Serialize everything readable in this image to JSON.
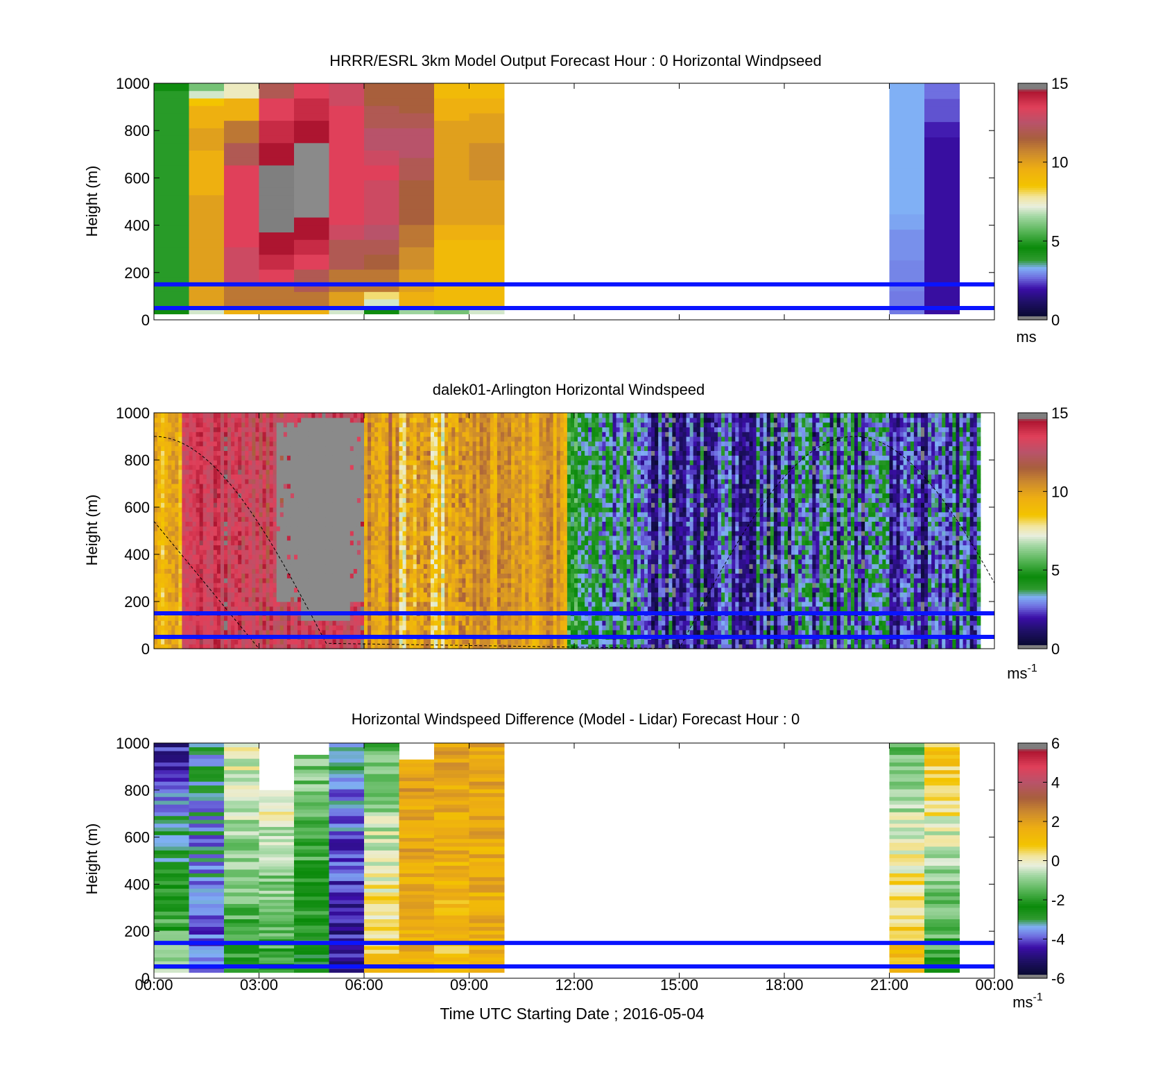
{
  "figure": {
    "xlabel": "Time UTC  Starting Date ; 2016-05-04",
    "x_ticks": [
      "00:00",
      "03:00",
      "06:00",
      "09:00",
      "12:00",
      "15:00",
      "18:00",
      "21:00",
      "00:00"
    ]
  },
  "chart_data": [
    {
      "type": "heatmap",
      "title": "HRRR/ESRL 3km Model Output   Forecast Hour : 0 Horizontal Windpseed",
      "ylabel": "Height (m)",
      "xlim_hours": [
        0,
        24
      ],
      "ylim": [
        0,
        1000
      ],
      "y_ticks": [
        "0",
        "200",
        "400",
        "600",
        "800",
        "1000"
      ],
      "colorbar": {
        "min": 0,
        "max": 15,
        "ticks": [
          "0",
          "5",
          "10",
          "15"
        ],
        "unit": "ms"
      },
      "hline_heights_m": [
        150,
        50
      ],
      "columns": [
        {
          "t0": 0,
          "t1": 1,
          "color": "green",
          "values": [
            4.5,
            5,
            5,
            5,
            5,
            5,
            5,
            5,
            5,
            5,
            5,
            5,
            5,
            5,
            5,
            5,
            5,
            5,
            5,
            5,
            5,
            5,
            5,
            5,
            5,
            5,
            5,
            5,
            5,
            5,
            4.5
          ]
        },
        {
          "t0": 1,
          "t1": 2,
          "values": [
            7,
            10,
            10,
            10,
            10,
            10,
            10,
            10,
            10,
            10,
            10,
            10,
            10,
            10,
            10,
            10,
            9.5,
            9.5,
            9.5,
            9.5,
            9.5,
            9.5,
            10,
            10,
            10,
            9.5,
            9.5,
            9.5,
            8.5,
            7,
            6
          ]
        },
        {
          "t0": 2,
          "t1": 3,
          "values": [
            9.5,
            11,
            11,
            11,
            13,
            13,
            13,
            13,
            13,
            13.5,
            13.5,
            13.5,
            13.5,
            13.5,
            13.5,
            13.5,
            13.5,
            13.5,
            13.5,
            13.5,
            12,
            12,
            12,
            11,
            11,
            11,
            9.5,
            9.5,
            9.5,
            7.5,
            7.5
          ]
        },
        {
          "t0": 3,
          "t1": 4,
          "values": [
            9.5,
            11,
            11,
            11,
            13.5,
            13.5,
            14,
            14,
            14.5,
            14.5,
            14.5,
            15,
            15,
            15,
            15,
            15,
            15,
            15,
            15,
            15,
            14.5,
            14.5,
            14.5,
            14,
            14,
            14,
            13.5,
            13.5,
            13.5,
            12,
            12
          ]
        },
        {
          "t0": 4,
          "t1": 5,
          "values": [
            9.5,
            11,
            11,
            12,
            12,
            12,
            13.5,
            13.5,
            14,
            14,
            14.5,
            14.5,
            14.5,
            16,
            16,
            16,
            16,
            16,
            16,
            16,
            16,
            16,
            16,
            14.5,
            14.5,
            14.5,
            14,
            14,
            14,
            13.5,
            13.5
          ]
        },
        {
          "t0": 5,
          "t1": 6,
          "values": [
            7,
            10,
            10,
            11,
            11,
            11,
            12,
            12,
            12,
            12,
            13,
            13,
            13.5,
            13.5,
            13.5,
            13.5,
            13.5,
            13.5,
            13.5,
            13.5,
            13.5,
            13.5,
            13.5,
            13.5,
            13.5,
            13.5,
            13.5,
            13.5,
            13,
            13,
            13
          ]
        },
        {
          "t0": 6,
          "t1": 7,
          "values": [
            4.5,
            7,
            8,
            11,
            11,
            11,
            11.5,
            11.5,
            12,
            12,
            12.5,
            12.5,
            13,
            13,
            13,
            13,
            13,
            13,
            13.5,
            13.5,
            13,
            13,
            12.5,
            12.5,
            12.5,
            12,
            12,
            12,
            11.5,
            11.5,
            11.5
          ]
        },
        {
          "t0": 7,
          "t1": 8,
          "values": [
            6.5,
            9.5,
            9.5,
            10,
            10,
            10,
            10.5,
            10.5,
            10.5,
            11,
            11,
            11,
            11.5,
            11.5,
            11.5,
            11.5,
            11.5,
            11.5,
            12,
            12,
            12,
            12.5,
            12.5,
            12.5,
            12.5,
            12,
            12,
            11.5,
            11.5,
            11.5,
            11.5
          ]
        },
        {
          "t0": 8,
          "t1": 9,
          "values": [
            6,
            9,
            9,
            9,
            9,
            9,
            9,
            9,
            9,
            9,
            9.5,
            9.5,
            10,
            10,
            10,
            10,
            10,
            10,
            10,
            10,
            10,
            10,
            10,
            10,
            10,
            10,
            9.5,
            9.5,
            9.5,
            9,
            9
          ]
        },
        {
          "t0": 9,
          "t1": 10,
          "values": [
            7,
            9,
            9,
            9,
            9,
            9,
            9,
            9,
            9,
            9,
            9.5,
            9.5,
            10,
            10,
            10,
            10,
            10,
            10,
            10.5,
            10.5,
            10.5,
            10.5,
            10.5,
            10,
            10,
            10,
            10,
            9.5,
            9.5,
            9,
            9
          ]
        },
        {
          "t0": 21,
          "t1": 22,
          "values": [
            2.8,
            2.8,
            2.8,
            2.9,
            2.9,
            2.9,
            2.9,
            3.0,
            3.0,
            3.0,
            3.0,
            3.2,
            3.2,
            3.3,
            3.3,
            3.3,
            3.3,
            3.3,
            3.3,
            3.3,
            3.3,
            3.3,
            3.3,
            3.3,
            3.3,
            3.3,
            3.3,
            3.3,
            3.3,
            3.3
          ]
        },
        {
          "t0": 22,
          "t1": 23,
          "values": [
            1.9,
            1.9,
            1.9,
            1.9,
            1.9,
            1.9,
            1.9,
            1.9,
            1.9,
            1.9,
            1.9,
            1.9,
            1.9,
            1.9,
            1.9,
            1.9,
            1.9,
            1.9,
            1.9,
            1.9,
            1.9,
            1.9,
            1.9,
            2.1,
            2.1,
            2.5,
            2.5,
            2.5,
            2.7,
            2.7
          ]
        }
      ]
    },
    {
      "type": "heatmap",
      "title": "dalek01-Arlington  Horizontal Windspeed",
      "ylabel": "Height (m)",
      "xlim_hours": [
        0,
        24
      ],
      "ylim": [
        0,
        1000
      ],
      "y_ticks": [
        "0",
        "200",
        "400",
        "600",
        "800",
        "1000"
      ],
      "colorbar": {
        "min": 0,
        "max": 15,
        "ticks": [
          "0",
          "5",
          "10",
          "15"
        ],
        "unit": "ms",
        "unit_exp": "-1"
      },
      "hline_heights_m": [
        150,
        50
      ],
      "sun_curve": true,
      "regions": [
        {
          "t0": 0.0,
          "t1": 0.8,
          "base": 9.5,
          "spread": 1.5
        },
        {
          "t0": 0.8,
          "t1": 2.0,
          "base": 13.5,
          "spread": 1.2
        },
        {
          "t0": 2.0,
          "t1": 6.0,
          "base": 13.2,
          "spread": 1.5,
          "gap": true
        },
        {
          "t0": 6.0,
          "t1": 7.0,
          "base": 10.8,
          "spread": 1.5
        },
        {
          "t0": 7.0,
          "t1": 9.0,
          "base": 9.0,
          "spread": 2.0
        },
        {
          "t0": 9.0,
          "t1": 11.8,
          "base": 10.0,
          "spread": 1.2
        },
        {
          "t0": 11.8,
          "t1": 14.0,
          "base": 3.8,
          "spread": 2.2
        },
        {
          "t0": 14.0,
          "t1": 18.0,
          "base": 2.2,
          "spread": 1.8
        },
        {
          "t0": 18.0,
          "t1": 21.0,
          "base": 3.0,
          "spread": 2.5
        },
        {
          "t0": 21.0,
          "t1": 24.0,
          "base": 2.5,
          "spread": 2.0
        }
      ]
    },
    {
      "type": "heatmap",
      "title": "Horizontal Windspeed Difference (Model - Lidar) Forecast Hour : 0",
      "ylabel": "Height (m)",
      "xlim_hours": [
        0,
        24
      ],
      "ylim": [
        0,
        1000
      ],
      "y_ticks": [
        "0",
        "200",
        "400",
        "600",
        "800",
        "1000"
      ],
      "colorbar": {
        "min": -6,
        "max": 6,
        "ticks": [
          "-6",
          "-4",
          "-2",
          "0",
          "2",
          "4",
          "6"
        ],
        "unit": "ms",
        "unit_exp": "-1"
      },
      "hline_heights_m": [
        150,
        50
      ],
      "columns": [
        {
          "t0": 0,
          "t1": 1,
          "top": 1000,
          "base": -1.0,
          "grad": -3.5
        },
        {
          "t0": 1,
          "t1": 2,
          "top": 1000,
          "base": -4.0,
          "grad": 0.8
        },
        {
          "t0": 2,
          "t1": 3,
          "top": 1000,
          "base": -2.0,
          "grad": 2.0
        },
        {
          "t0": 3,
          "t1": 4,
          "top": 800,
          "base": -2.0,
          "grad": 2.0
        },
        {
          "t0": 4,
          "t1": 5,
          "top": 950,
          "base": -2.5,
          "grad": 1.5
        },
        {
          "t0": 5,
          "t1": 6,
          "top": 1000,
          "base": -4.8,
          "grad": 1.5
        },
        {
          "t0": 6,
          "t1": 7,
          "top": 1000,
          "base": 1.0,
          "grad": -2.5
        },
        {
          "t0": 7,
          "t1": 8,
          "top": 930,
          "base": 1.5,
          "grad": 0.5
        },
        {
          "t0": 8,
          "t1": 9,
          "top": 1000,
          "base": 1.0,
          "grad": 1.0
        },
        {
          "t0": 9,
          "t1": 10,
          "top": 1000,
          "base": 1.5,
          "grad": 0.3
        },
        {
          "t0": 21,
          "t1": 22,
          "top": 1000,
          "base": 1.2,
          "grad": -2.5
        },
        {
          "t0": 22,
          "t1": 23,
          "top": 1000,
          "base": -2.0,
          "grad": 3.0
        }
      ]
    }
  ]
}
